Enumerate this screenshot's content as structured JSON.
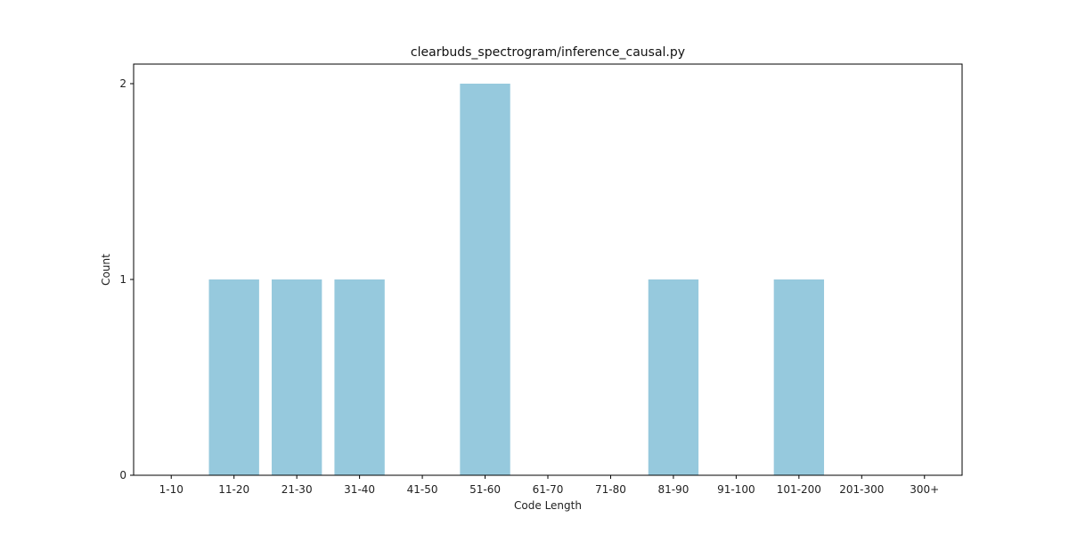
{
  "chart_data": {
    "type": "bar",
    "title": "clearbuds_spectrogram/inference_causal.py",
    "xlabel": "Code Length",
    "ylabel": "Count",
    "categories": [
      "1-10",
      "11-20",
      "21-30",
      "31-40",
      "41-50",
      "51-60",
      "61-70",
      "71-80",
      "81-90",
      "91-100",
      "101-200",
      "201-300",
      "300+"
    ],
    "values": [
      0,
      1,
      1,
      1,
      0,
      2,
      0,
      0,
      1,
      0,
      1,
      0,
      0
    ],
    "ylim": [
      0,
      2.1
    ],
    "yticks": [
      0,
      1,
      2
    ],
    "bar_color": "#96c9dd",
    "grid": false,
    "legend": "none"
  }
}
